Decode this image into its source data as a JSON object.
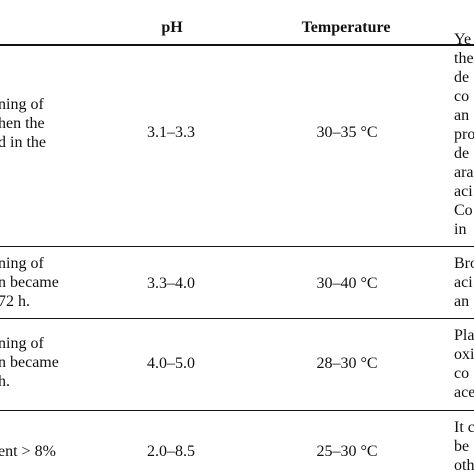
{
  "headers": {
    "ph": "pH",
    "temperature": "Temperature"
  },
  "rows": [
    {
      "desc": [
        "ning of",
        "hen the",
        "d in the"
      ],
      "ph": "3.1–3.3",
      "temperature": "30–35 °C",
      "notes": [
        "Ye",
        "the",
        "de",
        "co",
        "an",
        "pro",
        "de",
        "ara",
        "aci",
        "Co",
        "in"
      ]
    },
    {
      "desc": [
        "ning of",
        "n became",
        "72 h."
      ],
      "ph": "3.3–4.0",
      "temperature": "30–40 °C",
      "notes": [
        "Bro",
        "aci",
        "an"
      ]
    },
    {
      "desc": [
        "ning of",
        "n became",
        "h."
      ],
      "ph": "4.0–5.0",
      "temperature": "28–30 °C",
      "notes": [
        "Pla",
        "oxi",
        "co",
        "ace"
      ]
    },
    {
      "desc": [
        "ent > 8%"
      ],
      "ph": "2.0–8.5",
      "temperature": "25–30 °C",
      "notes": [
        "It c",
        "be",
        "oth"
      ]
    }
  ]
}
